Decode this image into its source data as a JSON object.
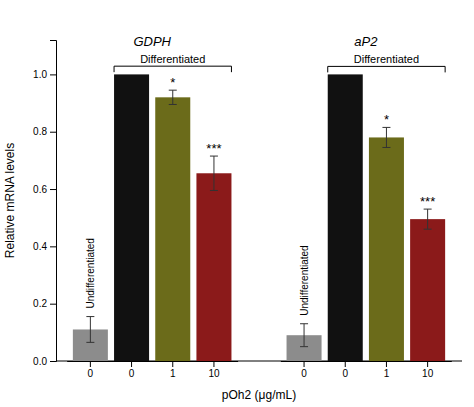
{
  "chart_data": {
    "type": "bar",
    "categories": [
      "0",
      "0",
      "1",
      "10"
    ],
    "colors": [
      "#8c8c8c",
      "#111111",
      "#6b6b1a",
      "#8b1a1a"
    ],
    "category_groups": [
      "Undifferentiated",
      "Differentiated",
      "Differentiated",
      "Differentiated"
    ],
    "series": [
      {
        "name": "GDPH",
        "values": [
          0.11,
          1.0,
          0.92,
          0.655
        ],
        "errors": [
          0.045,
          0.0,
          0.025,
          0.06
        ],
        "significance": [
          null,
          null,
          "*",
          "***"
        ]
      },
      {
        "name": "aP2",
        "values": [
          0.09,
          1.0,
          0.78,
          0.495
        ],
        "errors": [
          0.04,
          0.0,
          0.035,
          0.035
        ],
        "significance": [
          null,
          null,
          "*",
          "***"
        ]
      }
    ],
    "xlabel": "pOh2 (μg/mL)",
    "ylabel": "Relative mRNA levels",
    "ylim": [
      0.0,
      1.12
    ],
    "yticks": [
      {
        "value": 0.0,
        "label": "0.0"
      },
      0.2,
      0.4,
      0.6,
      0.8,
      {
        "value": 1.0,
        "label": "1.0"
      }
    ],
    "grid": false
  }
}
